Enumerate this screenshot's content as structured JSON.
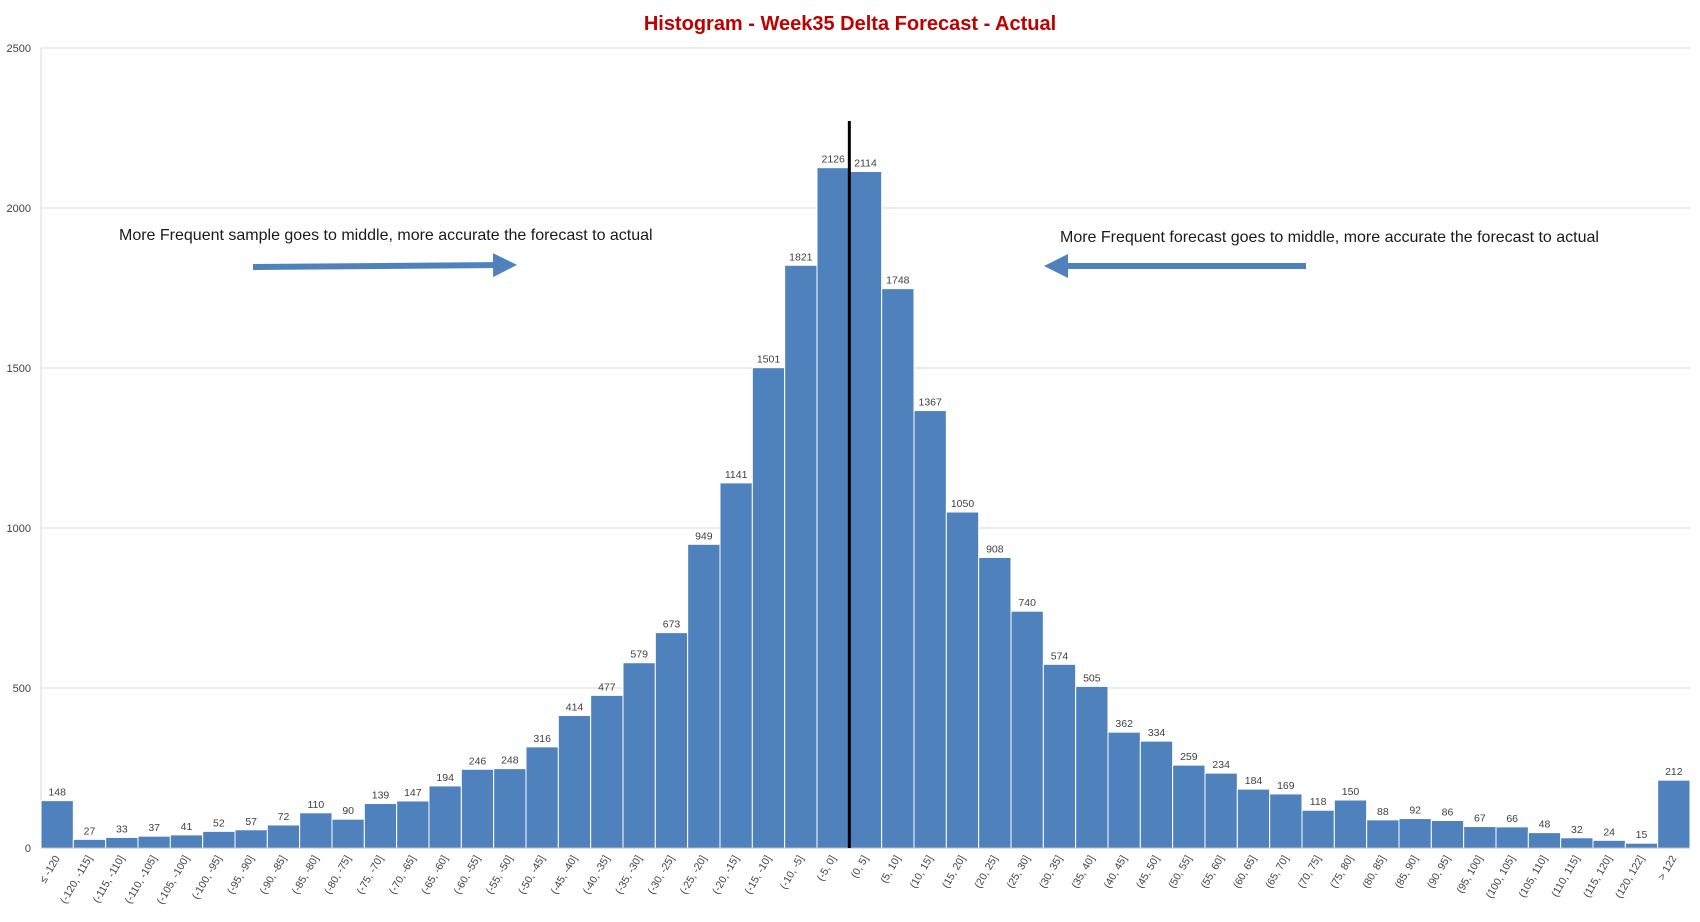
{
  "chart_data": {
    "type": "bar",
    "title": "Histogram - Week35 Delta Forecast - Actual",
    "xlabel": "",
    "ylabel": "",
    "ylim": [
      0,
      2500
    ],
    "yticks": [
      0,
      500,
      1000,
      1500,
      2000,
      2500
    ],
    "grid": true,
    "legend": "none",
    "bar_color": "#4f81bd",
    "title_color": "#c00000",
    "categories": [
      "≤ -120",
      "(-120, -115]",
      "(-115, -110]",
      "(-110, -105]",
      "(-105, -100]",
      "(-100, -95]",
      "(-95, -90]",
      "(-90, -85]",
      "(-85, -80]",
      "(-80, -75]",
      "(-75, -70]",
      "(-70, -65]",
      "(-65, -60]",
      "(-60, -55]",
      "(-55, -50]",
      "(-50, -45]",
      "(-45, -40]",
      "(-40, -35]",
      "(-35, -30]",
      "(-30, -25]",
      "(-25, -20]",
      "(-20, -15]",
      "(-15, -10]",
      "(-10, -5]",
      "(-5, 0]",
      "(0, 5]",
      "(5, 10]",
      "(10, 15]",
      "(15, 20]",
      "(20, 25]",
      "(25, 30]",
      "(30, 35]",
      "(35, 40]",
      "(40, 45]",
      "(45, 50]",
      "(50, 55]",
      "(55, 60]",
      "(60, 65]",
      "(65, 70]",
      "(70, 75]",
      "(75, 80]",
      "(80, 85]",
      "(85, 90]",
      "(90, 95]",
      "(95, 100]",
      "(100, 105]",
      "(105, 110]",
      "(110, 115]",
      "(115, 120]",
      "(120, 122]",
      "> 122"
    ],
    "values": [
      148,
      27,
      33,
      37,
      41,
      52,
      57,
      72,
      110,
      90,
      139,
      147,
      194,
      246,
      248,
      316,
      414,
      477,
      579,
      673,
      949,
      1141,
      1501,
      1821,
      2126,
      2114,
      1748,
      1367,
      1050,
      908,
      740,
      574,
      505,
      362,
      334,
      259,
      234,
      184,
      169,
      118,
      150,
      88,
      92,
      86,
      67,
      66,
      48,
      32,
      24,
      15,
      212
    ],
    "annotations": {
      "left": "More Frequent sample goes to middle, more accurate the forecast to actual",
      "right": "More Frequent forecast goes to middle, more accurate the forecast to actual"
    },
    "reference_line": {
      "between": [
        "(-5, 0]",
        "(0, 5]"
      ],
      "color": "#000000"
    }
  }
}
